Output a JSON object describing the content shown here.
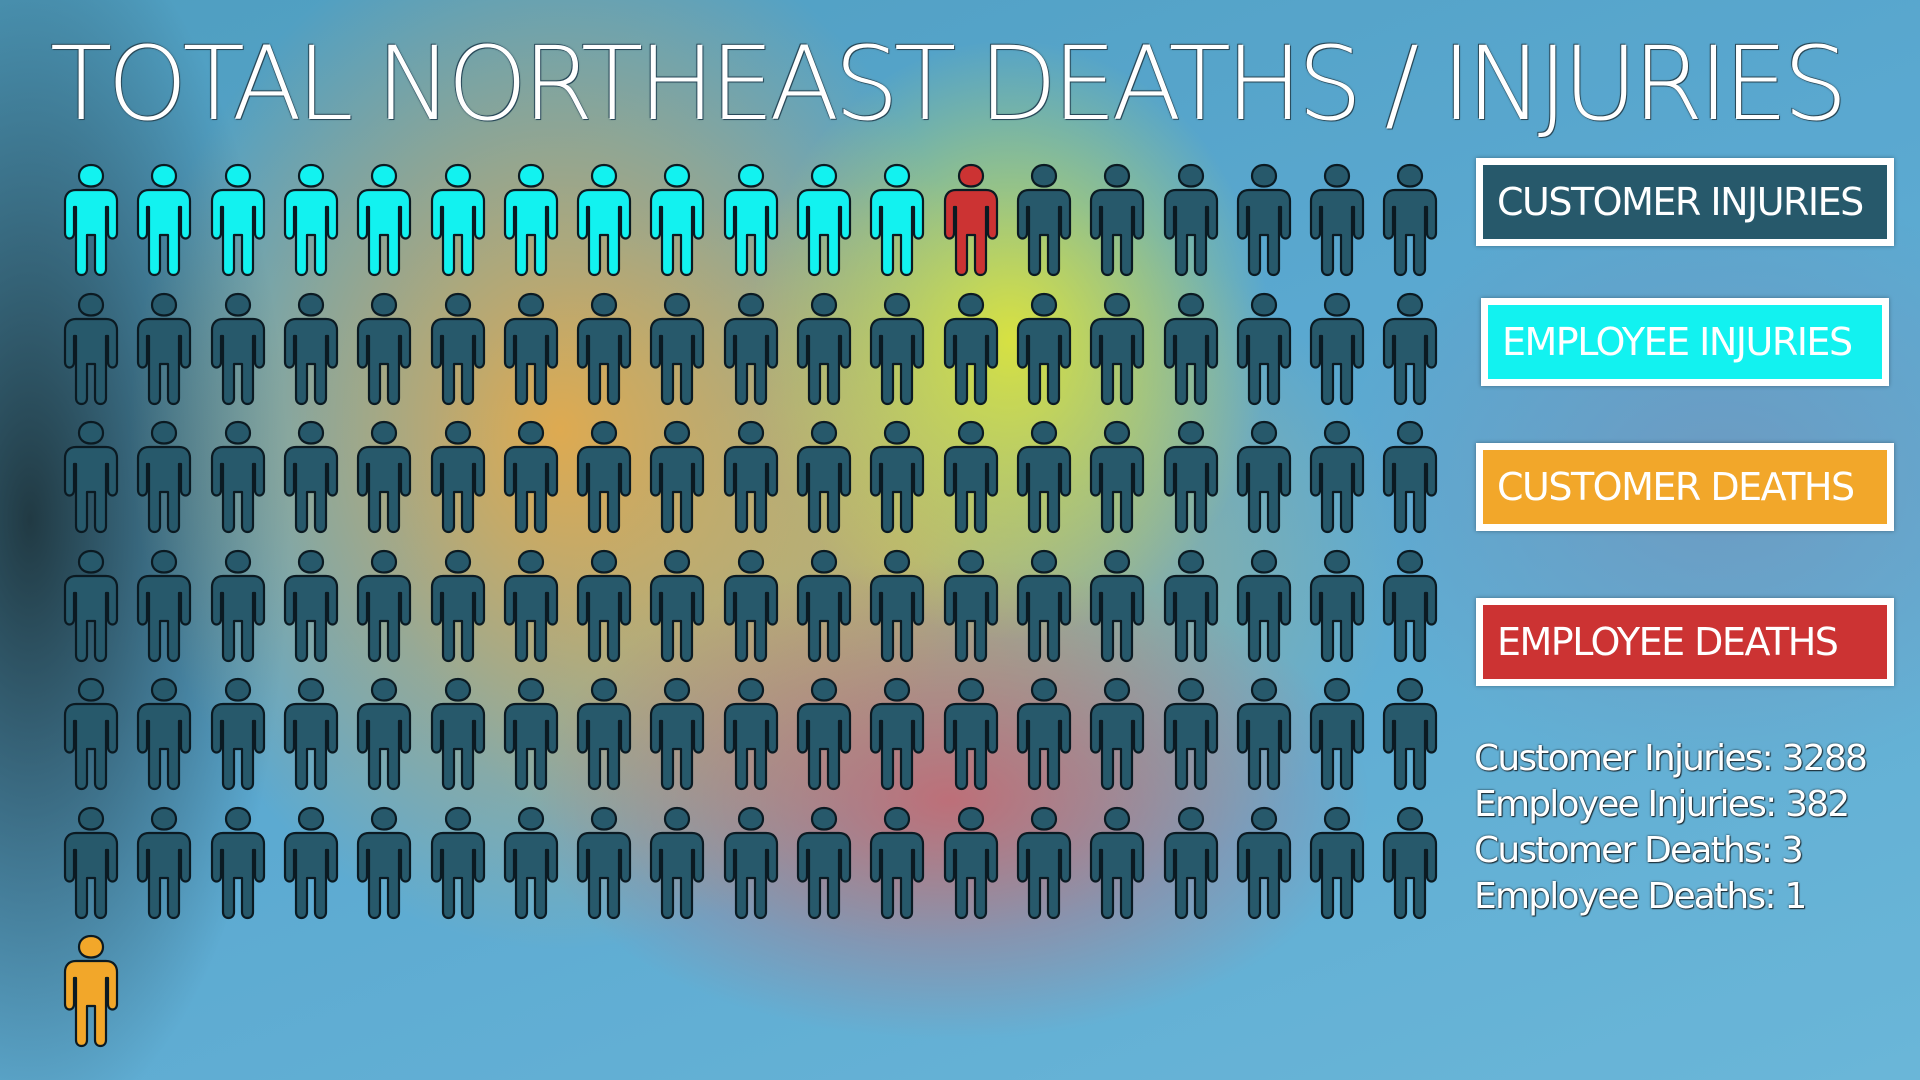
{
  "title": "TOTAL NORTHEAST DEATHS / INJURIES",
  "colors": {
    "customer_injuries": "#27596b",
    "employee_injuries": "#12f2f0",
    "customer_deaths": "#f2a72a",
    "employee_deaths": "#cc3333",
    "outline": "#0b1a22"
  },
  "legend": [
    {
      "key": "customer_injuries",
      "label": "CUSTOMER INJURIES"
    },
    {
      "key": "employee_injuries",
      "label": "EMPLOYEE INJURIES"
    },
    {
      "key": "customer_deaths",
      "label": "CUSTOMER DEATHS"
    },
    {
      "key": "employee_deaths",
      "label": "EMPLOYEE DEATHS"
    }
  ],
  "stats": [
    "Customer Injuries: 3288",
    "Employee Injuries: 382",
    "Customer Deaths: 3",
    "Employee Deaths: 1"
  ],
  "chart_data": {
    "type": "pictograph",
    "columns": 19,
    "figures": {
      "counts": [
        {
          "category": "Employee Injuries",
          "key": "employee_injuries",
          "count": 12
        },
        {
          "category": "Employee Deaths",
          "key": "employee_deaths",
          "count": 1
        },
        {
          "category": "Customer Injuries",
          "key": "customer_injuries",
          "count": 101
        },
        {
          "category": "Customer Deaths",
          "key": "customer_deaths",
          "count": 1
        }
      ],
      "total": 115
    },
    "values": [
      {
        "category": "Customer Injuries",
        "value": 3288
      },
      {
        "category": "Employee Injuries",
        "value": 382
      },
      {
        "category": "Customer Deaths",
        "value": 3
      },
      {
        "category": "Employee Deaths",
        "value": 1
      }
    ]
  }
}
